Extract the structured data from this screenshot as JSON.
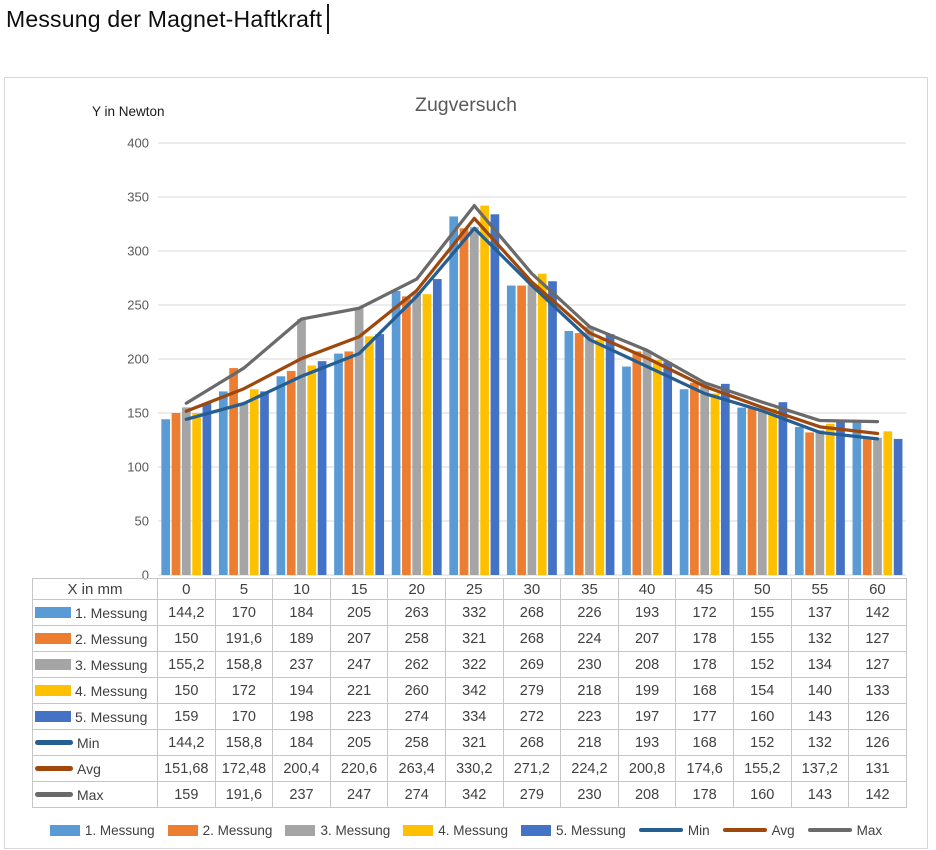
{
  "page": {
    "title": "Messung der Magnet-Haftkraft"
  },
  "chart_data": {
    "type": "bar+line",
    "title": "Zugversuch",
    "xlabel": "X in mm",
    "ylabel": "Y in Newton",
    "x": [
      0,
      5,
      10,
      15,
      20,
      25,
      30,
      35,
      40,
      45,
      50,
      55,
      60
    ],
    "ylim": [
      0,
      400
    ],
    "ytick_step": 50,
    "yticks": [
      0,
      50,
      100,
      150,
      200,
      250,
      300,
      350,
      400
    ],
    "grid": true,
    "legend_position": "bottom",
    "number_format": "decimal-comma",
    "series": [
      {
        "name": "1. Messung",
        "kind": "bar",
        "color": "#5B9BD5",
        "values": [
          144.2,
          170,
          184,
          205,
          263,
          332,
          268,
          226,
          193,
          172,
          155,
          137,
          142
        ]
      },
      {
        "name": "2. Messung",
        "kind": "bar",
        "color": "#ED7D31",
        "values": [
          150,
          191.6,
          189,
          207,
          258,
          321,
          268,
          224,
          207,
          178,
          155,
          132,
          127
        ]
      },
      {
        "name": "3. Messung",
        "kind": "bar",
        "color": "#A5A5A5",
        "values": [
          155.2,
          158.8,
          237,
          247,
          262,
          322,
          269,
          230,
          208,
          178,
          152,
          134,
          127
        ]
      },
      {
        "name": "4. Messung",
        "kind": "bar",
        "color": "#FFC000",
        "values": [
          150,
          172,
          194,
          221,
          260,
          342,
          279,
          218,
          199,
          168,
          154,
          140,
          133
        ]
      },
      {
        "name": "5. Messung",
        "kind": "bar",
        "color": "#4472C4",
        "values": [
          159,
          170,
          198,
          223,
          274,
          334,
          272,
          223,
          197,
          177,
          160,
          143,
          126
        ]
      },
      {
        "name": "Min",
        "kind": "line",
        "color": "#255E91",
        "values": [
          144.2,
          158.8,
          184,
          205,
          258,
          321,
          268,
          218,
          193,
          168,
          152,
          132,
          126
        ]
      },
      {
        "name": "Avg",
        "kind": "line",
        "color": "#9E480E",
        "values": [
          151.68,
          172.48,
          200.4,
          220.6,
          263.4,
          330.2,
          271.2,
          224.2,
          200.8,
          174.6,
          155.2,
          137.2,
          131
        ]
      },
      {
        "name": "Max",
        "kind": "line",
        "color": "#6A6A6A",
        "values": [
          159,
          191.6,
          237,
          247,
          274,
          342,
          279,
          230,
          208,
          178,
          160,
          143,
          142
        ]
      }
    ],
    "colors": {
      "gridline": "#D9D9D9",
      "axis_text": "#595959",
      "table_border": "#C6C6C6",
      "table_text": "#404040",
      "title_text": "#595959"
    }
  }
}
